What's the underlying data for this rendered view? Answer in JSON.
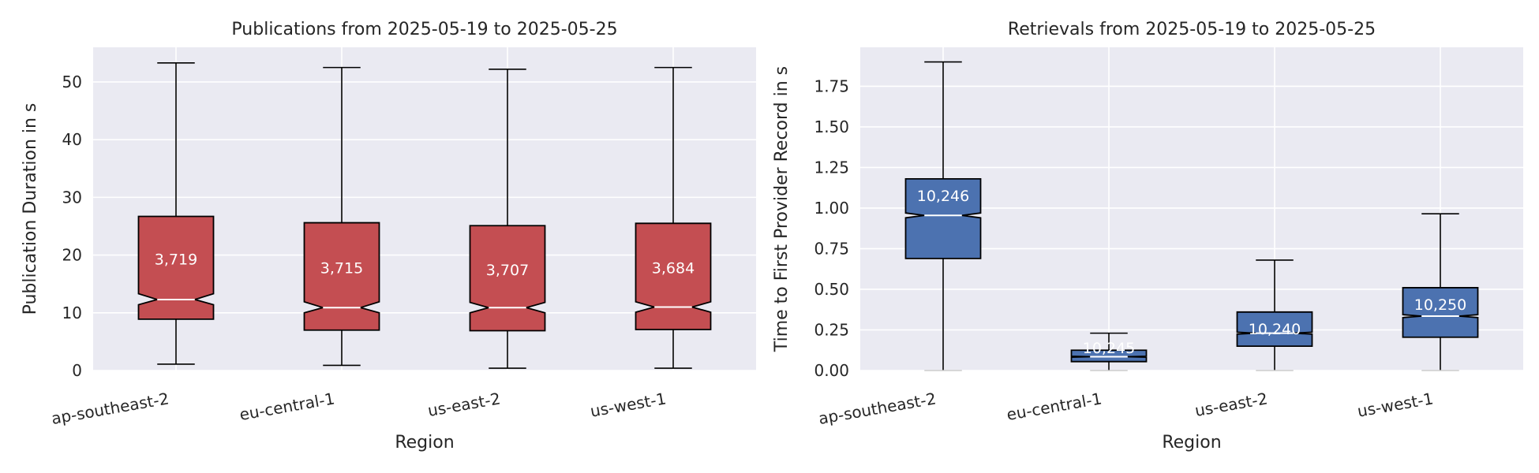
{
  "chart_data": [
    {
      "type": "box",
      "title": "Publications from 2025-05-19 to 2025-05-25",
      "xlabel": "Region",
      "ylabel": "Publication Duration in s",
      "categories": [
        "ap-southeast-2",
        "eu-central-1",
        "us-east-2",
        "us-west-1"
      ],
      "ylim": [
        0,
        56
      ],
      "yticks": [
        0,
        10,
        20,
        30,
        40,
        50
      ],
      "ytick_labels": [
        "0",
        "10",
        "20",
        "30",
        "40",
        "50"
      ],
      "grid": true,
      "box_color": "#c44e52",
      "notched": true,
      "boxes": [
        {
          "category": "ap-southeast-2",
          "whisker_low": 1.1,
          "q1": 8.9,
          "median": 12.3,
          "q3": 26.7,
          "whisker_high": 53.3,
          "count": "3,719",
          "notch_low": 11.4,
          "notch_high": 13.3
        },
        {
          "category": "eu-central-1",
          "whisker_low": 0.9,
          "q1": 7.0,
          "median": 10.9,
          "q3": 25.6,
          "whisker_high": 52.5,
          "count": "3,715",
          "notch_low": 10.0,
          "notch_high": 11.9
        },
        {
          "category": "us-east-2",
          "whisker_low": 0.4,
          "q1": 6.9,
          "median": 10.9,
          "q3": 25.1,
          "whisker_high": 52.2,
          "count": "3,707",
          "notch_low": 10.0,
          "notch_high": 11.8
        },
        {
          "category": "us-west-1",
          "whisker_low": 0.4,
          "q1": 7.1,
          "median": 11.0,
          "q3": 25.5,
          "whisker_high": 52.5,
          "count": "3,684",
          "notch_low": 10.1,
          "notch_high": 11.9
        }
      ]
    },
    {
      "type": "box",
      "title": "Retrievals from 2025-05-19 to 2025-05-25",
      "xlabel": "Region",
      "ylabel": "Time to First Provider Record in s",
      "categories": [
        "ap-southeast-2",
        "eu-central-1",
        "us-east-2",
        "us-west-1"
      ],
      "ylim": [
        0,
        1.99
      ],
      "yticks": [
        0,
        0.25,
        0.5,
        0.75,
        1.0,
        1.25,
        1.5,
        1.75
      ],
      "ytick_labels": [
        "0.00",
        "0.25",
        "0.50",
        "0.75",
        "1.00",
        "1.25",
        "1.50",
        "1.75"
      ],
      "grid": true,
      "box_color": "#4c72b0",
      "notched": true,
      "boxes": [
        {
          "category": "ap-southeast-2",
          "whisker_low": 0.0,
          "q1": 0.69,
          "median": 0.955,
          "q3": 1.18,
          "whisker_high": 1.9,
          "count": "10,246",
          "notch_low": 0.94,
          "notch_high": 0.97
        },
        {
          "category": "eu-central-1",
          "whisker_low": 0.0,
          "q1": 0.055,
          "median": 0.085,
          "q3": 0.125,
          "whisker_high": 0.23,
          "count": "10,245",
          "notch_low": 0.082,
          "notch_high": 0.088
        },
        {
          "category": "us-east-2",
          "whisker_low": 0.0,
          "q1": 0.15,
          "median": 0.23,
          "q3": 0.36,
          "whisker_high": 0.68,
          "count": "10,240",
          "notch_low": 0.224,
          "notch_high": 0.236
        },
        {
          "category": "us-west-1",
          "whisker_low": 0.0,
          "q1": 0.205,
          "median": 0.335,
          "q3": 0.51,
          "whisker_high": 0.965,
          "count": "10,250",
          "notch_low": 0.326,
          "notch_high": 0.344
        }
      ]
    }
  ]
}
